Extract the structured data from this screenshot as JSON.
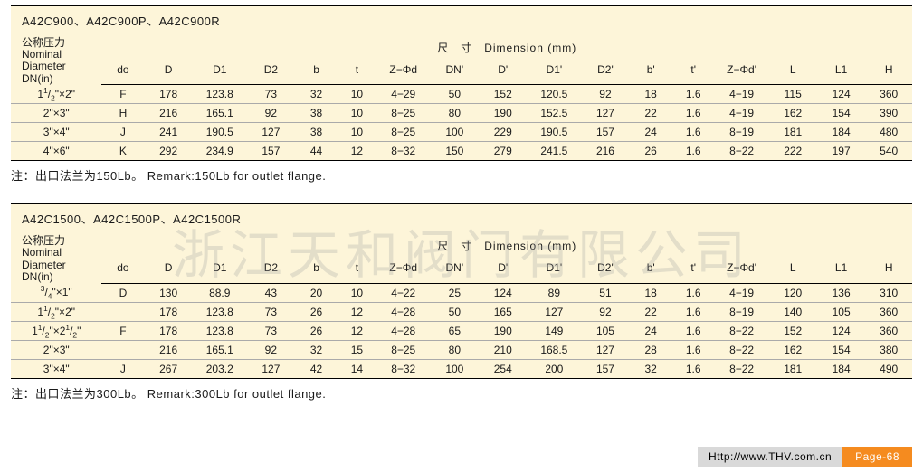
{
  "watermark": "浙江天和阀门有限公司",
  "footer": {
    "url": "Http://www.THV.com.cn",
    "page": "Page-68"
  },
  "table1": {
    "title": "A42C900、A42C900P、A42C900R",
    "dn_header": {
      "l1": "公称压力",
      "l2": "Nominal",
      "l3": "Diameter",
      "l4": "DN(in)"
    },
    "dim_label": "尺　寸　Dimension (mm)",
    "cols": [
      "do",
      "D",
      "D1",
      "D2",
      "b",
      "t",
      "Z−Φd",
      "DN'",
      "D'",
      "D1'",
      "D2'",
      "b'",
      "t'",
      "Z−Φd'",
      "L",
      "L1",
      "H"
    ],
    "rows": [
      {
        "dn": "1<sup>1</sup>/<sub>2</sub>\"×2\"",
        "v": [
          "F",
          "178",
          "123.8",
          "73",
          "32",
          "10",
          "4−29",
          "50",
          "152",
          "120.5",
          "92",
          "18",
          "1.6",
          "4−19",
          "115",
          "124",
          "360"
        ]
      },
      {
        "dn": "2\"×3\"",
        "v": [
          "H",
          "216",
          "165.1",
          "92",
          "38",
          "10",
          "8−25",
          "80",
          "190",
          "152.5",
          "127",
          "22",
          "1.6",
          "4−19",
          "162",
          "154",
          "390"
        ]
      },
      {
        "dn": "3\"×4\"",
        "v": [
          "J",
          "241",
          "190.5",
          "127",
          "38",
          "10",
          "8−25",
          "100",
          "229",
          "190.5",
          "157",
          "24",
          "1.6",
          "8−19",
          "181",
          "184",
          "480"
        ]
      },
      {
        "dn": "4\"×6\"",
        "v": [
          "K",
          "292",
          "234.9",
          "157",
          "44",
          "12",
          "8−32",
          "150",
          "279",
          "241.5",
          "216",
          "26",
          "1.6",
          "8−22",
          "222",
          "197",
          "540"
        ]
      }
    ],
    "remark": "注：出口法兰为150Lb。 Remark:150Lb for outlet flange."
  },
  "table2": {
    "title": "A42C1500、A42C1500P、A42C1500R",
    "dn_header": {
      "l1": "公称压力",
      "l2": "Nominal",
      "l3": "Diameter",
      "l4": "DN(in)"
    },
    "dim_label": "尺　寸　Dimension (mm)",
    "cols": [
      "do",
      "D",
      "D1",
      "D2",
      "b",
      "t",
      "Z−Φd",
      "DN'",
      "D'",
      "D1'",
      "D2'",
      "b'",
      "t'",
      "Z−Φd'",
      "L",
      "L1",
      "H"
    ],
    "rows": [
      {
        "dn": "<sup>3</sup>/<sub>4</sub>\"×1\"",
        "v": [
          "D",
          "130",
          "88.9",
          "43",
          "20",
          "10",
          "4−22",
          "25",
          "124",
          "89",
          "51",
          "18",
          "1.6",
          "4−19",
          "120",
          "136",
          "310"
        ]
      },
      {
        "dn": "1<sup>1</sup>/<sub>2</sub>\"×2\"",
        "v": [
          "",
          "178",
          "123.8",
          "73",
          "26",
          "12",
          "4−28",
          "50",
          "165",
          "127",
          "92",
          "22",
          "1.6",
          "8−19",
          "140",
          "105",
          "360"
        ]
      },
      {
        "dn": "1<sup>1</sup>/<sub>2</sub>\"×2<sup>1</sup>/<sub>2</sub>\"",
        "v": [
          "F",
          "178",
          "123.8",
          "73",
          "26",
          "12",
          "4−28",
          "65",
          "190",
          "149",
          "105",
          "24",
          "1.6",
          "8−22",
          "152",
          "124",
          "360"
        ]
      },
      {
        "dn": "2\"×3\"",
        "v": [
          "",
          "216",
          "165.1",
          "92",
          "32",
          "15",
          "8−25",
          "80",
          "210",
          "168.5",
          "127",
          "28",
          "1.6",
          "8−22",
          "162",
          "154",
          "380"
        ]
      },
      {
        "dn": "3\"×4\"",
        "v": [
          "J",
          "267",
          "203.2",
          "127",
          "42",
          "14",
          "8−32",
          "100",
          "254",
          "200",
          "157",
          "32",
          "1.6",
          "8−22",
          "181",
          "184",
          "490"
        ]
      }
    ],
    "remark": "注：出口法兰为300Lb。 Remark:300Lb for outlet flange."
  },
  "colwidths": [
    "94",
    "44",
    "50",
    "56",
    "50",
    "44",
    "40",
    "56",
    "50",
    "50",
    "56",
    "50",
    "44",
    "44",
    "56",
    "50",
    "50",
    "48"
  ]
}
